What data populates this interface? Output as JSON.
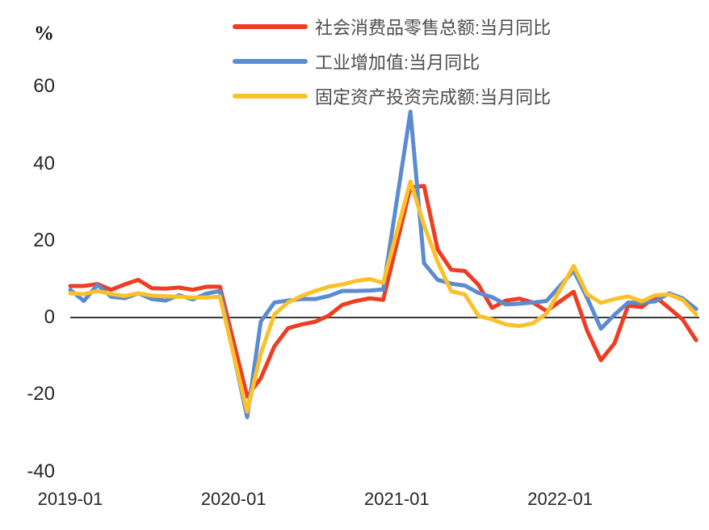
{
  "chart_data": {
    "type": "line",
    "title": "",
    "unit_label": "%",
    "grid": false,
    "legend_position": "top-center",
    "baseline": 0,
    "ylim": [
      -40,
      62
    ],
    "y_ticks": [
      60,
      40,
      20,
      0,
      -20,
      -40
    ],
    "x_ticks": [
      {
        "label": "2019-01",
        "month_index": 0
      },
      {
        "label": "2020-01",
        "month_index": 12
      },
      {
        "label": "2021-01",
        "month_index": 24
      },
      {
        "label": "2022-01",
        "month_index": 36
      }
    ],
    "x": [
      "2019-01",
      "2019-02",
      "2019-03",
      "2019-04",
      "2019-05",
      "2019-06",
      "2019-07",
      "2019-08",
      "2019-09",
      "2019-10",
      "2019-11",
      "2019-12",
      "2020-01",
      "2020-02",
      "2020-03",
      "2020-04",
      "2020-05",
      "2020-06",
      "2020-07",
      "2020-08",
      "2020-09",
      "2020-10",
      "2020-11",
      "2020-12",
      "2021-01",
      "2021-02",
      "2021-03",
      "2021-04",
      "2021-05",
      "2021-06",
      "2021-07",
      "2021-08",
      "2021-09",
      "2021-10",
      "2021-11",
      "2021-12",
      "2022-01",
      "2022-02",
      "2022-03",
      "2022-04",
      "2022-05",
      "2022-06",
      "2022-07",
      "2022-08",
      "2022-09",
      "2022-10",
      "2022-11"
    ],
    "axis_line_color": "#3b3b3b",
    "series": [
      {
        "name": "社会消费品零售总额:当月同比",
        "color": "#ee3d23",
        "values": [
          8.2,
          8.2,
          8.7,
          7.2,
          8.6,
          9.8,
          7.6,
          7.5,
          7.8,
          7.2,
          8.0,
          8.0,
          null,
          -20.5,
          -15.8,
          -7.5,
          -2.8,
          -1.8,
          -1.1,
          0.5,
          3.3,
          4.3,
          5.0,
          4.6,
          null,
          33.8,
          34.2,
          17.7,
          12.4,
          12.1,
          8.5,
          2.5,
          4.4,
          4.9,
          3.9,
          1.7,
          null,
          6.7,
          -3.5,
          -11.1,
          -6.7,
          3.1,
          2.7,
          5.4,
          2.5,
          -0.5,
          -5.9
        ]
      },
      {
        "name": "工业增加值:当月同比",
        "color": "#5b8bd0",
        "values": [
          7.2,
          4.3,
          8.5,
          5.4,
          5.0,
          6.3,
          4.8,
          4.4,
          5.8,
          4.7,
          6.2,
          6.9,
          null,
          -25.9,
          -1.1,
          3.9,
          4.4,
          4.8,
          4.8,
          5.6,
          6.9,
          6.9,
          7.0,
          7.3,
          null,
          53.5,
          14.1,
          9.8,
          8.8,
          8.3,
          6.4,
          5.3,
          3.4,
          3.6,
          3.9,
          4.3,
          null,
          12.2,
          5.0,
          -2.9,
          0.7,
          3.9,
          3.8,
          4.2,
          6.3,
          5.0,
          2.2
        ]
      },
      {
        "name": "固定资产投资完成额:当月同比",
        "color": "#fcc12a",
        "values": [
          6.3,
          6.1,
          6.9,
          6.1,
          5.6,
          6.3,
          5.7,
          5.5,
          5.4,
          5.2,
          5.2,
          5.4,
          null,
          -24.5,
          -9.4,
          0.8,
          3.9,
          5.6,
          6.9,
          8.0,
          8.6,
          9.5,
          10.0,
          9.0,
          null,
          35.4,
          24.0,
          14.5,
          6.8,
          6.0,
          0.4,
          -0.5,
          -1.8,
          -2.2,
          -1.5,
          1.0,
          null,
          13.4,
          6.0,
          3.8,
          4.8,
          5.5,
          4.2,
          5.8,
          6.0,
          4.6,
          0.8
        ]
      }
    ]
  }
}
